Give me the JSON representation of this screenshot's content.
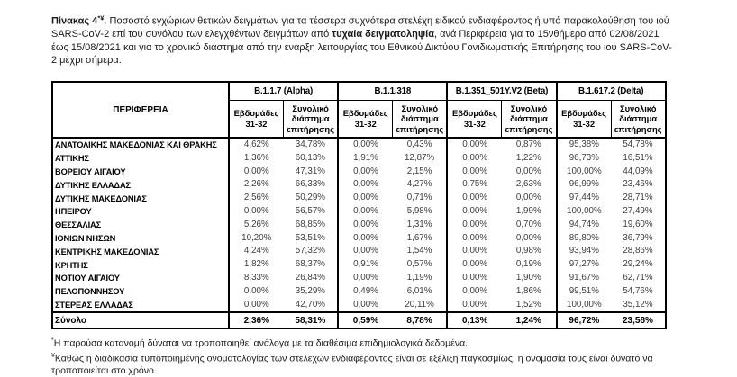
{
  "title": {
    "bold_lead": "Πίνακας 4",
    "lead_superscript": "*¥",
    "segment_1": ". Ποσοστό εγχώριων θετικών δειγμάτων για τα τέσσερα συχνότερα στελέχη ειδικού ενδιαφέροντος ή υπό παρακολούθηση του ιού SARS-CoV-2 επί του συνόλου των ελεγχθέντων δειγμάτων από ",
    "bold_phrase": "τυχαία δειγματοληψία",
    "segment_2": ", ανά Περιφέρεια για το 15νθήμερο από 02/08/2021 έως 15/08/2021 και για το χρονικό διάστημα από την έναρξη λειτουργίας του Εθνικού Δικτύου Γονιδιωματικής Επιτήρησης του ιού SARS-CoV-2 μέχρι σήμερα."
  },
  "table": {
    "region_header": "ΠΕΡΙΦΕΡΕΙΑ",
    "variant_groups": [
      "B.1.1.7 (Alpha)",
      "B.1.1.318",
      "B.1.351_501Y.V2 (Beta)",
      "B.1.617.2 (Delta)"
    ],
    "subheaders": {
      "weeks": "Εβδομάδες 31-32",
      "total": "Συνολικό διάστημα επιτήρησης"
    },
    "rows": [
      {
        "region": "ΑΝΑΤΟΛΙΚΗΣ ΜΑΚΕΔΟΝΙΑΣ ΚΑΙ ΘΡΑΚΗΣ",
        "values": [
          "4,62%",
          "34,78%",
          "0,00%",
          "0,43%",
          "0,00%",
          "0,87%",
          "95,38%",
          "54,78%"
        ]
      },
      {
        "region": "ΑΤΤΙΚΗΣ",
        "values": [
          "1,36%",
          "60,13%",
          "1,91%",
          "12,87%",
          "0,00%",
          "1,22%",
          "96,73%",
          "16,51%"
        ]
      },
      {
        "region": "ΒΟΡΕΙΟΥ ΑΙΓΑΙΟΥ",
        "values": [
          "0,00%",
          "47,31%",
          "0,00%",
          "2,15%",
          "0,00%",
          "0,00%",
          "100,00%",
          "44,09%"
        ]
      },
      {
        "region": "ΔΥΤΙΚΗΣ ΕΛΛΑΔΑΣ",
        "values": [
          "2,26%",
          "66,33%",
          "0,00%",
          "4,27%",
          "0,75%",
          "2,63%",
          "96,99%",
          "23,46%"
        ]
      },
      {
        "region": "ΔΥΤΙΚΗΣ ΜΑΚΕΔΟΝΙΑΣ",
        "values": [
          "2,56%",
          "50,29%",
          "0,00%",
          "0,71%",
          "0,00%",
          "0,00%",
          "97,44%",
          "28,71%"
        ]
      },
      {
        "region": "ΗΠΕΙΡΟΥ",
        "values": [
          "0,00%",
          "56,57%",
          "0,00%",
          "5,98%",
          "0,00%",
          "1,99%",
          "100,00%",
          "27,49%"
        ]
      },
      {
        "region": "ΘΕΣΣΑΛΙΑΣ",
        "values": [
          "5,26%",
          "68,85%",
          "0,00%",
          "1,31%",
          "0,00%",
          "0,70%",
          "94,74%",
          "19,60%"
        ]
      },
      {
        "region": "ΙΟΝΙΩΝ ΝΗΣΩΝ",
        "values": [
          "10,20%",
          "53,51%",
          "0,00%",
          "1,67%",
          "0,00%",
          "0,00%",
          "89,80%",
          "36,79%"
        ]
      },
      {
        "region": "ΚΕΝΤΡΙΚΗΣ ΜΑΚΕΔΟΝΙΑΣ",
        "values": [
          "4,24%",
          "57,32%",
          "0,00%",
          "1,54%",
          "0,00%",
          "0,98%",
          "93,94%",
          "28,86%"
        ]
      },
      {
        "region": "ΚΡΗΤΗΣ",
        "values": [
          "1,82%",
          "68,37%",
          "0,91%",
          "0,57%",
          "0,00%",
          "0,19%",
          "97,27%",
          "29,24%"
        ]
      },
      {
        "region": "ΝΟΤΙΟΥ ΑΙΓΑΙΟΥ",
        "values": [
          "8,33%",
          "26,84%",
          "0,00%",
          "1,19%",
          "0,00%",
          "1,90%",
          "91,67%",
          "62,71%"
        ]
      },
      {
        "region": "ΠΕΛΟΠΟΝΝΗΣΟΥ",
        "values": [
          "0,00%",
          "35,29%",
          "0,49%",
          "6,01%",
          "0,00%",
          "1,86%",
          "99,51%",
          "54,76%"
        ]
      },
      {
        "region": "ΣΤΕΡΕΑΣ ΕΛΛΑΔΑΣ",
        "values": [
          "0,00%",
          "42,70%",
          "0,00%",
          "20,11%",
          "0,00%",
          "1,52%",
          "100,00%",
          "35,12%"
        ]
      }
    ],
    "total_row": {
      "label": "Σύνολο",
      "values": [
        "2,36%",
        "58,31%",
        "0,59%",
        "8,78%",
        "0,13%",
        "1,24%",
        "96,72%",
        "23,58%"
      ]
    }
  },
  "footnotes": [
    {
      "marker": "*",
      "text": "Η παρούσα κατανομή δύναται να τροποποιηθεί ανάλογα με τα διαθέσιμα επιδημιολογικά δεδομένα."
    },
    {
      "marker": "¥",
      "text": "Καθώς η διαδικασία τυποποιημένης ονοματολογίας των στελεχών ενδιαφέροντος είναι σε εξέλιξη παγκοσμίως, η ονομασία τους είναι δυνατό να τροποποιείται στο χρόνο."
    }
  ]
}
